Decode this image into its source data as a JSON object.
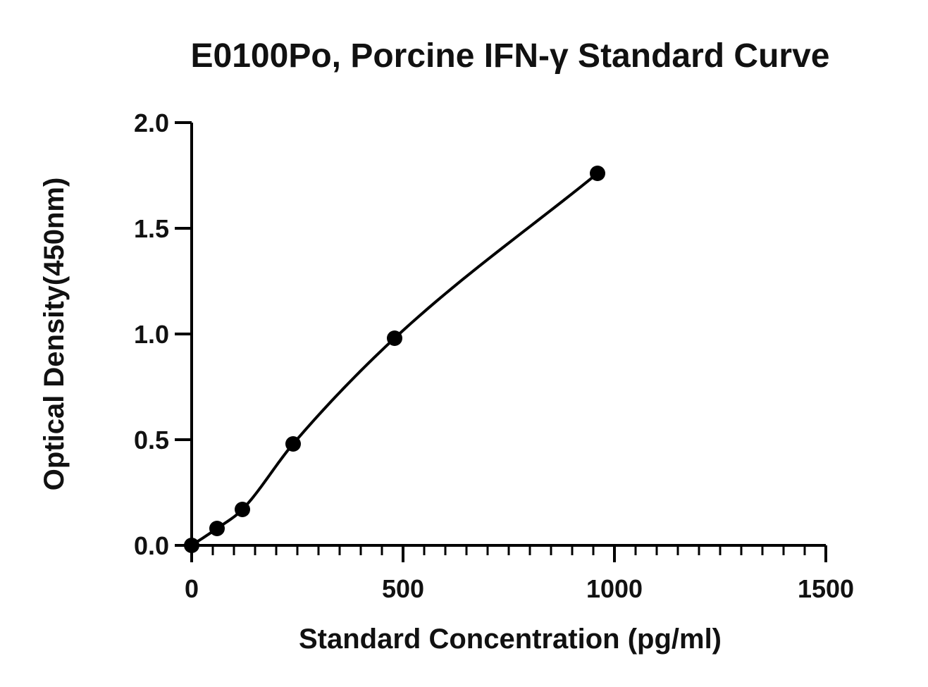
{
  "chart_data": {
    "type": "scatter",
    "title": "E0100Po, Porcine IFN-γ Standard Curve",
    "xlabel": "Standard Concentration (pg/ml)",
    "ylabel": "Optical Density(450nm)",
    "xlim": [
      0,
      1500
    ],
    "ylim": [
      0,
      2.0
    ],
    "x_ticks": [
      0,
      500,
      1000,
      1500
    ],
    "x_tick_labels": [
      "0",
      "500",
      "1000",
      "1500"
    ],
    "x_minor_step": 50,
    "y_ticks": [
      0,
      0.5,
      1.0,
      1.5,
      2.0
    ],
    "y_tick_labels": [
      "0.0",
      "0.5",
      "1.0",
      "1.5",
      "2.0"
    ],
    "grid": false,
    "legend": "none",
    "series": [
      {
        "x": [
          0,
          60,
          120,
          240,
          480,
          960
        ],
        "y": [
          0.0,
          0.08,
          0.17,
          0.48,
          0.98,
          1.76
        ]
      }
    ],
    "fit_curve": true,
    "colors": {
      "points": "#000000",
      "curve": "#000000",
      "axes": "#000000"
    }
  }
}
